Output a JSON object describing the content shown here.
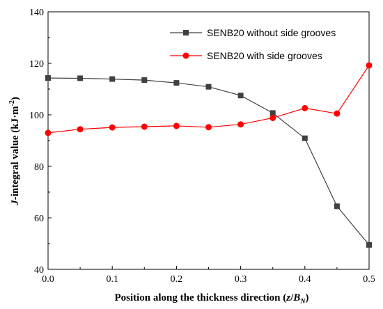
{
  "chart_data": {
    "type": "line",
    "title": "",
    "xlabel": "Position along the thickness direction (z/B_N)",
    "xlabel_parts": {
      "prefix": "Position along the thickness direction (",
      "var1": "z",
      "slash": "/",
      "var2": "B",
      "sub": "N",
      "suffix": ")"
    },
    "ylabel": "J-integral value (kJ·m⁻²)",
    "ylabel_parts": {
      "var": "J",
      "text": "-integral value (kJ·m",
      "sup": "-2",
      "close": ")"
    },
    "xlim": [
      0.0,
      0.5
    ],
    "ylim": [
      40,
      140
    ],
    "xticks": [
      "0.0",
      "0.1",
      "0.2",
      "0.3",
      "0.4",
      "0.5"
    ],
    "yticks": [
      "40",
      "60",
      "80",
      "100",
      "120",
      "140"
    ],
    "grid": false,
    "legend_position": "top-right",
    "x": [
      0.0,
      0.05,
      0.1,
      0.15,
      0.2,
      0.25,
      0.3,
      0.35,
      0.4,
      0.45,
      0.5
    ],
    "series": [
      {
        "name": "SENB20 without side grooves",
        "color": "#404040",
        "marker": "square",
        "values": [
          114.3,
          114.2,
          113.9,
          113.5,
          112.4,
          110.9,
          107.5,
          100.7,
          90.9,
          64.5,
          49.5
        ]
      },
      {
        "name": "SENB20 with side grooves",
        "color": "#ff0000",
        "marker": "circle",
        "values": [
          93.0,
          94.4,
          95.1,
          95.4,
          95.7,
          95.2,
          96.3,
          98.8,
          102.6,
          100.5,
          119.2
        ]
      }
    ]
  }
}
